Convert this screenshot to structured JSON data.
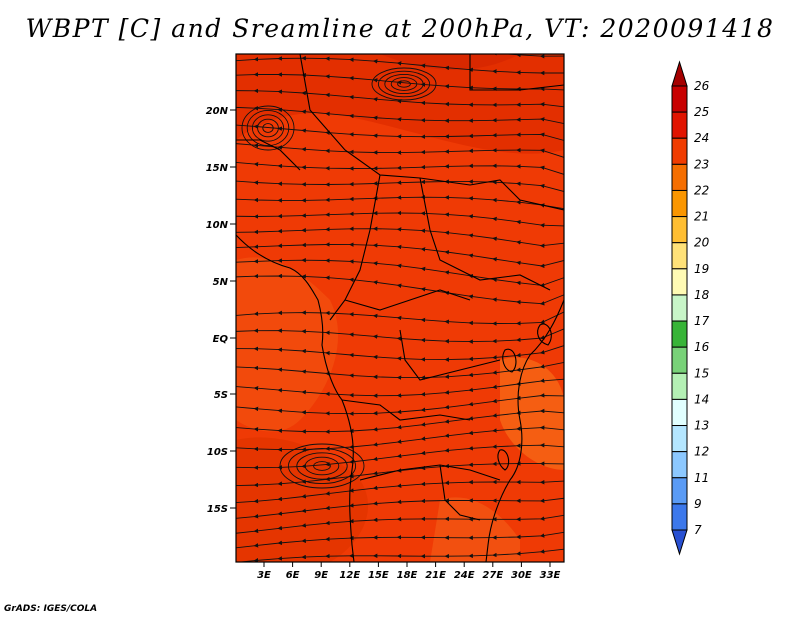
{
  "title": "WBPT [C] and Sreamline at 200hPa, VT: 2020091418",
  "credit": "GrADS: IGES/COLA",
  "map": {
    "lat_ticks": [
      "20N",
      "15N",
      "10N",
      "5N",
      "EQ",
      "5S",
      "10S",
      "15S"
    ],
    "lon_ticks": [
      "3E",
      "6E",
      "9E",
      "12E",
      "15E",
      "18E",
      "21E",
      "24E",
      "27E",
      "30E",
      "33E"
    ],
    "field_colors": [
      "#f03c05",
      "#e83200",
      "#dc2a00",
      "#f55a10"
    ]
  },
  "colorbar": {
    "levels": [
      "26",
      "25",
      "24",
      "23",
      "22",
      "21",
      "20",
      "19",
      "18",
      "17",
      "16",
      "15",
      "14",
      "13",
      "12",
      "11",
      "9",
      "7"
    ],
    "colors": [
      "#a50000",
      "#c80000",
      "#e11400",
      "#f03c00",
      "#f56e00",
      "#fa9600",
      "#ffbe32",
      "#ffe178",
      "#fffab4",
      "#c8f5c8",
      "#37b437",
      "#78d278",
      "#b4f0b4",
      "#e1ffff",
      "#b4e6ff",
      "#8cc8ff",
      "#5a9bf5",
      "#3c78eb",
      "#2850d2"
    ]
  }
}
